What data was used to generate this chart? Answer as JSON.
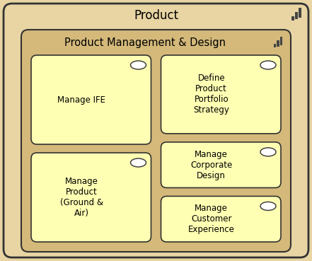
{
  "outer_bg": "#E8D5A3",
  "outer_border": "#333333",
  "outer_title": "Product",
  "outer_title_fontsize": 12,
  "inner_bg": "#D4B97A",
  "inner_border": "#333333",
  "inner_title": "Product Management & Design",
  "inner_title_fontsize": 10.5,
  "card_bg": "#FFFFB3",
  "card_border": "#333333",
  "cards": [
    {
      "label": "Manage IFE",
      "col": 0,
      "row": 0
    },
    {
      "label": "Define\nProduct\nPortfolio\nStrategy",
      "col": 1,
      "row": 0
    },
    {
      "label": "Manage\nProduct\n(Ground &\nAir)",
      "col": 0,
      "row": 1
    },
    {
      "label": "Manage\nCorporate\nDesign",
      "col": 1,
      "row": 1
    },
    {
      "label": "Manage\nCustomer\nExperience",
      "col": 1,
      "row": 2
    }
  ],
  "icon_color": "#444444",
  "fig_w": 4.41,
  "fig_h": 3.69,
  "dpi": 100
}
